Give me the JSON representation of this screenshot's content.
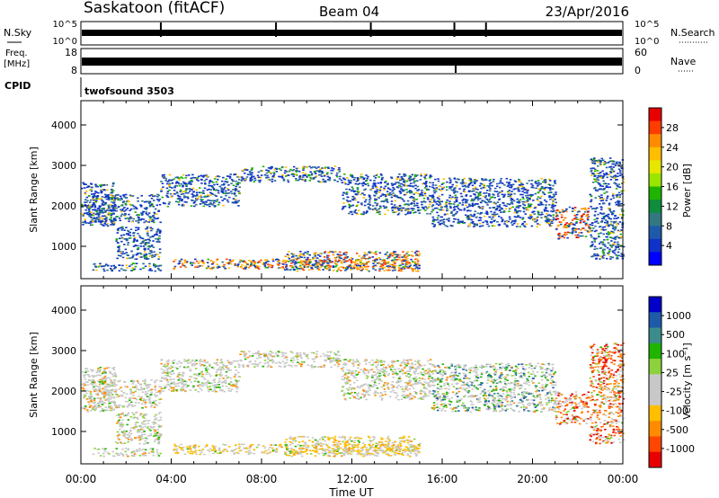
{
  "header": {
    "station": "Saskatoon (fitACF)",
    "beam": "Beam 04",
    "date": "23/Apr/2016"
  },
  "panels": {
    "nsky": {
      "label": "N.Sky",
      "right_label": "N.Search",
      "left_ticks": [
        "10^5",
        "10^0"
      ],
      "right_ticks": [
        "10^5",
        "10^0"
      ]
    },
    "freq": {
      "label_line1": "Freq.",
      "label_line2": "[MHz]",
      "right_label": "Nave",
      "left_ticks": [
        "18",
        "8"
      ],
      "right_ticks": [
        "60",
        "0"
      ]
    },
    "cpid": {
      "label": "CPID",
      "value": "twofsound 3503"
    }
  },
  "chart_data": [
    {
      "type": "heatmap",
      "name": "power",
      "ylabel": "Slant Range [km]",
      "ylim": [
        200,
        4600
      ],
      "yticks": [
        1000,
        2000,
        3000,
        4000
      ],
      "colorbar": {
        "label": "Power [dB]",
        "ticks": [
          "28",
          "24",
          "20",
          "16",
          "12",
          "8",
          "4"
        ],
        "colors": [
          "#e80000",
          "#ff3c00",
          "#ff8c00",
          "#ffbe00",
          "#e6e600",
          "#9be600",
          "#1eb400",
          "#0f8c3c",
          "#327882",
          "#1e5aaa",
          "#0f32c8",
          "#0000ff"
        ]
      },
      "bands": [
        {
          "start": 0.0,
          "end": 1.5,
          "min": 1500,
          "max": 2600
        },
        {
          "start": 0.3,
          "end": 3.5,
          "min": 1600,
          "max": 2300
        },
        {
          "start": 3.5,
          "end": 7.0,
          "min": 2000,
          "max": 2800
        },
        {
          "start": 7.0,
          "end": 11.5,
          "min": 2600,
          "max": 3000
        },
        {
          "start": 11.5,
          "end": 15.5,
          "min": 1800,
          "max": 2800
        },
        {
          "start": 15.5,
          "end": 21.0,
          "min": 1500,
          "max": 2700
        },
        {
          "start": 21.0,
          "end": 22.5,
          "min": 1200,
          "max": 2000
        },
        {
          "start": 22.5,
          "end": 24.0,
          "min": 700,
          "max": 3200
        },
        {
          "start": 1.5,
          "end": 3.5,
          "min": 700,
          "max": 1500
        },
        {
          "start": 0.5,
          "end": 3.5,
          "min": 400,
          "max": 600
        },
        {
          "start": 4.0,
          "end": 15.0,
          "min": 450,
          "max": 700
        },
        {
          "start": 9.0,
          "end": 15.0,
          "min": 400,
          "max": 900
        }
      ]
    },
    {
      "type": "heatmap",
      "name": "velocity",
      "ylabel": "Slant Range [km]",
      "ylim": [
        200,
        4600
      ],
      "yticks": [
        1000,
        2000,
        3000,
        4000
      ],
      "colorbar": {
        "label": "Velocity [m s⁻¹]",
        "ticks": [
          "1000",
          "500",
          "100",
          "25",
          "-25",
          "-100",
          "-500",
          "-1000"
        ],
        "colors": [
          "#0000c8",
          "#1e5aaa",
          "#3c8c8c",
          "#1eb400",
          "#8cd23c",
          "#c8c8c8",
          "#c8c8c8",
          "#ffbe00",
          "#ff8c00",
          "#ff4600",
          "#e80000"
        ]
      },
      "bands": [
        {
          "start": 0.0,
          "end": 1.5,
          "min": 1500,
          "max": 2600
        },
        {
          "start": 0.3,
          "end": 3.5,
          "min": 1600,
          "max": 2300
        },
        {
          "start": 3.5,
          "end": 7.0,
          "min": 2000,
          "max": 2800
        },
        {
          "start": 7.0,
          "end": 11.5,
          "min": 2600,
          "max": 3000
        },
        {
          "start": 11.5,
          "end": 15.5,
          "min": 1800,
          "max": 2800
        },
        {
          "start": 15.5,
          "end": 21.0,
          "min": 1500,
          "max": 2700
        },
        {
          "start": 21.0,
          "end": 22.5,
          "min": 1200,
          "max": 2000
        },
        {
          "start": 22.5,
          "end": 24.0,
          "min": 700,
          "max": 3200
        },
        {
          "start": 1.5,
          "end": 3.5,
          "min": 700,
          "max": 1500
        },
        {
          "start": 0.5,
          "end": 3.5,
          "min": 400,
          "max": 600
        },
        {
          "start": 4.0,
          "end": 15.0,
          "min": 450,
          "max": 700
        },
        {
          "start": 9.0,
          "end": 15.0,
          "min": 400,
          "max": 900
        }
      ]
    }
  ],
  "xaxis": {
    "label": "Time UT",
    "ticks": [
      "00:00",
      "04:00",
      "08:00",
      "12:00",
      "16:00",
      "20:00",
      "00:00"
    ]
  }
}
